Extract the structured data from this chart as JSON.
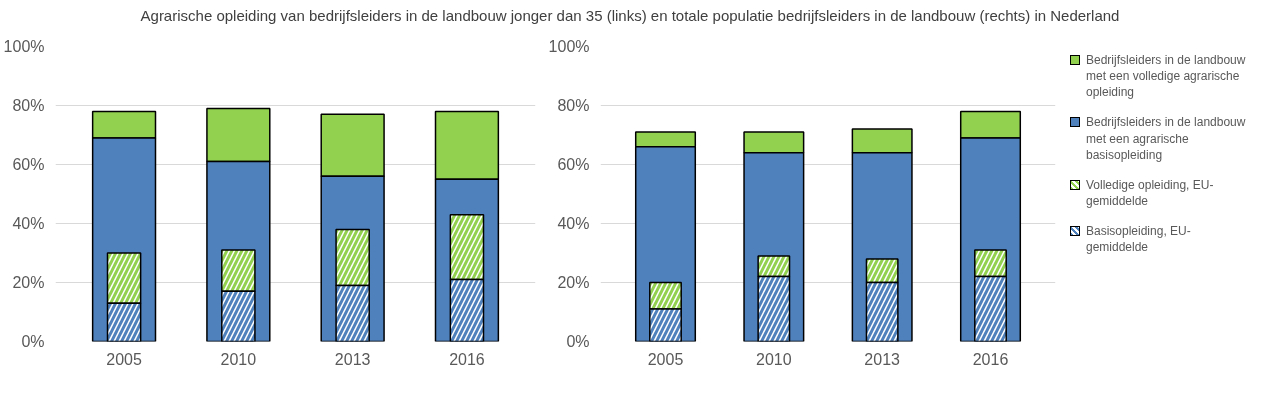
{
  "chart_data": [
    {
      "type": "bar",
      "title": "Agrarische opleiding van bedrijfsleiders in de landbouw jonger dan 35 (links) en totale populatie bedrijfsleiders in de landbouw (rechts) in Nederland",
      "categories": [
        "2005",
        "2010",
        "2013",
        "2016"
      ],
      "ylim": [
        0,
        100
      ],
      "yticks": [
        {
          "value": 0,
          "label": "0%"
        },
        {
          "value": 20,
          "label": "20%"
        },
        {
          "value": 40,
          "label": "40%"
        },
        {
          "value": 60,
          "label": "60%"
        },
        {
          "value": 80,
          "label": "80%"
        },
        {
          "value": 100,
          "label": "100%"
        }
      ],
      "grid": "y",
      "legend": "right",
      "series": [
        {
          "name": "Bedrijfsleiders in de landbouw met een volledige agrarische opleiding",
          "color": "#92d050",
          "base": [
            69,
            61,
            56,
            55
          ],
          "values": [
            9,
            18,
            21,
            23
          ]
        },
        {
          "name": "Bedrijfsleiders in de landbouw met een agrarische basisopleiding",
          "color": "#4f81bd",
          "base": [
            0,
            0,
            0,
            0
          ],
          "values": [
            69,
            61,
            56,
            55
          ]
        },
        {
          "name": "Volledige opleiding, EU-gemiddelde",
          "color": "#92d050",
          "base": [
            13,
            17,
            19,
            21
          ],
          "values": [
            17,
            14,
            19,
            22
          ]
        },
        {
          "name": "Basisopleiding, EU-gemiddelde",
          "color": "#4f81bd",
          "base": [
            0,
            0,
            0,
            0
          ],
          "values": [
            13,
            17,
            19,
            21
          ]
        }
      ]
    },
    {
      "type": "bar",
      "categories": [
        "2005",
        "2010",
        "2013",
        "2016"
      ],
      "ylim": [
        0,
        100
      ],
      "yticks": [
        {
          "value": 0,
          "label": "0%"
        },
        {
          "value": 20,
          "label": "20%"
        },
        {
          "value": 40,
          "label": "40%"
        },
        {
          "value": 60,
          "label": "60%"
        },
        {
          "value": 80,
          "label": "80%"
        },
        {
          "value": 100,
          "label": "100%"
        }
      ],
      "grid": "y",
      "legend": "right",
      "series": [
        {
          "name": "Bedrijfsleiders in de landbouw met een volledige agrarische opleiding",
          "color": "#92d050",
          "base": [
            66,
            64,
            64,
            69
          ],
          "values": [
            5,
            7,
            8,
            9
          ]
        },
        {
          "name": "Bedrijfsleiders in de landbouw met een agrarische basisopleiding",
          "color": "#4f81bd",
          "base": [
            0,
            0,
            0,
            0
          ],
          "values": [
            66,
            64,
            64,
            69
          ]
        },
        {
          "name": "Volledige opleiding, EU-gemiddelde",
          "color": "#92d050",
          "base": [
            11,
            22,
            20,
            22
          ],
          "values": [
            9,
            7,
            8,
            9
          ]
        },
        {
          "name": "Basisopleiding, EU-gemiddelde",
          "color": "#4f81bd",
          "base": [
            0,
            0,
            0,
            0
          ],
          "values": [
            11,
            22,
            20,
            22
          ]
        }
      ]
    }
  ]
}
